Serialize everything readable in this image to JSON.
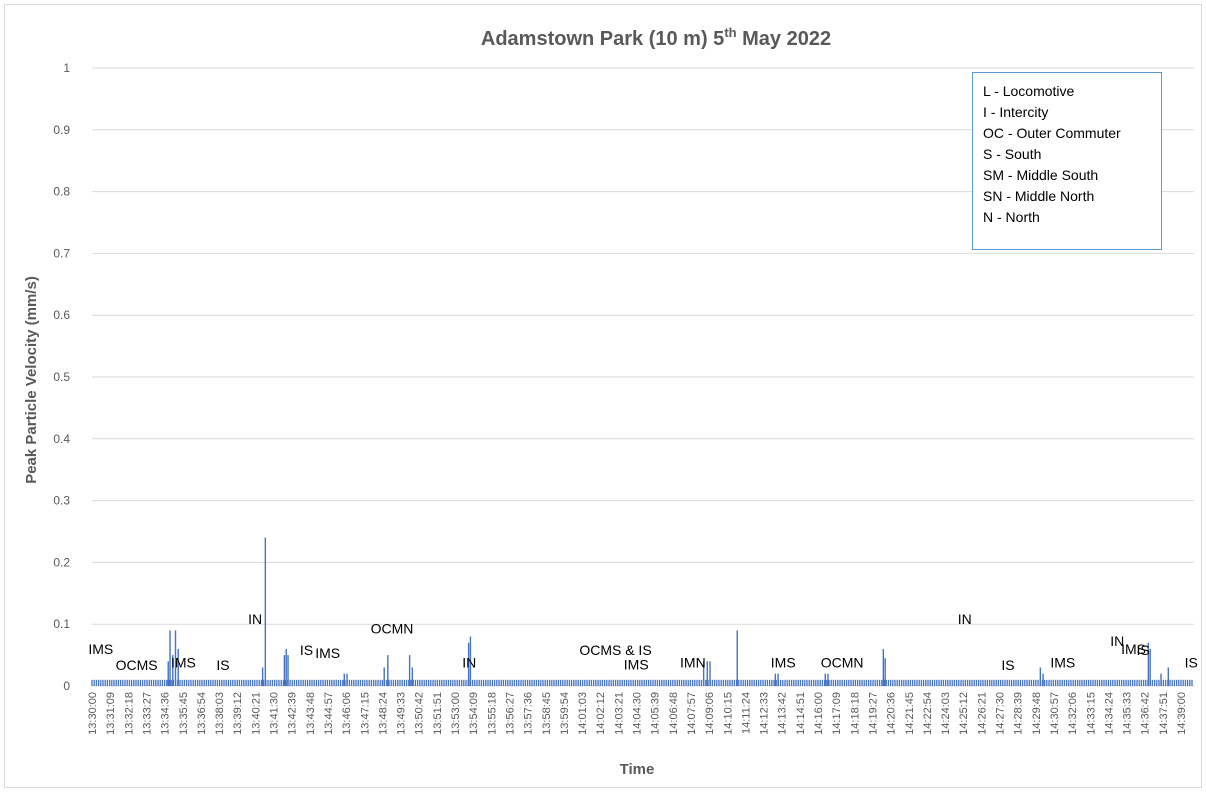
{
  "chart_data": {
    "type": "bar",
    "title": "Adamstown Park (10 m) 5th May 2022",
    "title_main": "Adamstown Park (10 m) 5",
    "title_sup": "th",
    "title_rest": " May 2022",
    "xlabel": "Time",
    "ylabel": "Peak Particle Velocity (mm/s)",
    "ylim": [
      0,
      1
    ],
    "yticks": [
      "0",
      "0.1",
      "0.2",
      "0.3",
      "0.4",
      "0.5",
      "0.6",
      "0.7",
      "0.8",
      "0.9",
      "1"
    ],
    "grid": true,
    "baseline_value": 0.01,
    "xticks": [
      "13:30:00",
      "13:31:09",
      "13:32:18",
      "13:33:27",
      "13:34:36",
      "13:35:45",
      "13:36:54",
      "13:38:03",
      "13:39:12",
      "13:40:21",
      "13:41:30",
      "13:42:39",
      "13:43:48",
      "13:44:57",
      "13:46:06",
      "13:47:15",
      "13:48:24",
      "13:49:33",
      "13:50:42",
      "13:51:51",
      "13:53:00",
      "13:54:09",
      "13:55:18",
      "13:56:27",
      "13:57:36",
      "13:58:45",
      "13:59:54",
      "14:01:03",
      "14:02:12",
      "14:03:21",
      "14:04:30",
      "14:05:39",
      "14:06:48",
      "14:07:57",
      "14:09:06",
      "14:10:15",
      "14:11:24",
      "14:12:33",
      "14:13:42",
      "14:14:51",
      "14:16:00",
      "14:17:09",
      "14:18:18",
      "14:19:27",
      "14:20:36",
      "14:21:45",
      "14:22:54",
      "14:24:03",
      "14:25:12",
      "14:26:21",
      "14:27:30",
      "14:28:39",
      "14:29:48",
      "14:30:57",
      "14:32:06",
      "14:33:15",
      "14:34:24",
      "14:35:33",
      "14:36:42",
      "14:37:51",
      "14:39:00"
    ],
    "peaks": [
      {
        "t": 4.3,
        "v": 0.09
      },
      {
        "t": 4.45,
        "v": 0.05
      },
      {
        "t": 4.6,
        "v": 0.09
      },
      {
        "t": 4.75,
        "v": 0.06
      },
      {
        "t": 4.2,
        "v": 0.04
      },
      {
        "t": 9.55,
        "v": 0.24
      },
      {
        "t": 9.4,
        "v": 0.03
      },
      {
        "t": 10.6,
        "v": 0.05
      },
      {
        "t": 10.7,
        "v": 0.06
      },
      {
        "t": 10.8,
        "v": 0.05
      },
      {
        "t": 13.9,
        "v": 0.02
      },
      {
        "t": 14.05,
        "v": 0.02
      },
      {
        "t": 16.1,
        "v": 0.03
      },
      {
        "t": 16.3,
        "v": 0.05
      },
      {
        "t": 17.5,
        "v": 0.05
      },
      {
        "t": 17.65,
        "v": 0.03
      },
      {
        "t": 20.75,
        "v": 0.07
      },
      {
        "t": 20.85,
        "v": 0.08
      },
      {
        "t": 33.7,
        "v": 0.04
      },
      {
        "t": 33.9,
        "v": 0.04
      },
      {
        "t": 34.05,
        "v": 0.04
      },
      {
        "t": 35.55,
        "v": 0.09
      },
      {
        "t": 37.65,
        "v": 0.02
      },
      {
        "t": 37.8,
        "v": 0.02
      },
      {
        "t": 40.4,
        "v": 0.02
      },
      {
        "t": 40.55,
        "v": 0.02
      },
      {
        "t": 43.6,
        "v": 0.06
      },
      {
        "t": 43.7,
        "v": 0.045
      },
      {
        "t": 52.25,
        "v": 0.03
      },
      {
        "t": 52.4,
        "v": 0.02
      },
      {
        "t": 58.2,
        "v": 0.07
      },
      {
        "t": 58.3,
        "v": 0.06
      },
      {
        "t": 58.9,
        "v": 0.02
      },
      {
        "t": 59.3,
        "v": 0.03
      }
    ],
    "annotations": [
      {
        "text": "IMS",
        "t": -0.2,
        "y": 0.052
      },
      {
        "text": "OCMS",
        "t": 1.3,
        "y": 0.026
      },
      {
        "text": "IMS",
        "t": 4.35,
        "y": 0.03
      },
      {
        "text": "IS",
        "t": 6.85,
        "y": 0.026
      },
      {
        "text": "IN",
        "t": 8.6,
        "y": 0.1
      },
      {
        "text": "IS",
        "t": 11.45,
        "y": 0.05
      },
      {
        "text": "IMS",
        "t": 12.3,
        "y": 0.045
      },
      {
        "text": "OCMN",
        "t": 15.35,
        "y": 0.085
      },
      {
        "text": "IN",
        "t": 20.4,
        "y": 0.03
      },
      {
        "text": "OCMS & IS",
        "t": 26.85,
        "y": 0.05
      },
      {
        "text": "IMS",
        "t": 29.3,
        "y": 0.027
      },
      {
        "text": "IMN",
        "t": 32.4,
        "y": 0.03
      },
      {
        "text": "IMS",
        "t": 37.4,
        "y": 0.03
      },
      {
        "text": "OCMN",
        "t": 40.15,
        "y": 0.03
      },
      {
        "text": "IN",
        "t": 47.7,
        "y": 0.1
      },
      {
        "text": "IS",
        "t": 50.1,
        "y": 0.026
      },
      {
        "text": "IMS",
        "t": 52.8,
        "y": 0.03
      },
      {
        "text": "IN",
        "t": 56.1,
        "y": 0.065
      },
      {
        "text": "IMS",
        "t": 56.7,
        "y": 0.052
      },
      {
        "text": "IS",
        "t": 57.55,
        "y": 0.05
      },
      {
        "text": "IS",
        "t": 60.2,
        "y": 0.03
      }
    ]
  },
  "legend": {
    "items": [
      "L - Locomotive",
      "I - Intercity",
      "OC - Outer Commuter",
      "S - South",
      "SM - Middle South",
      "SN - Middle North",
      "N - North"
    ]
  },
  "colors": {
    "series": "#4472c4",
    "grid": "#d9d9d9",
    "axis_text": "#595959",
    "title_text": "#595959",
    "legend_border": "#5b9bd5"
  }
}
